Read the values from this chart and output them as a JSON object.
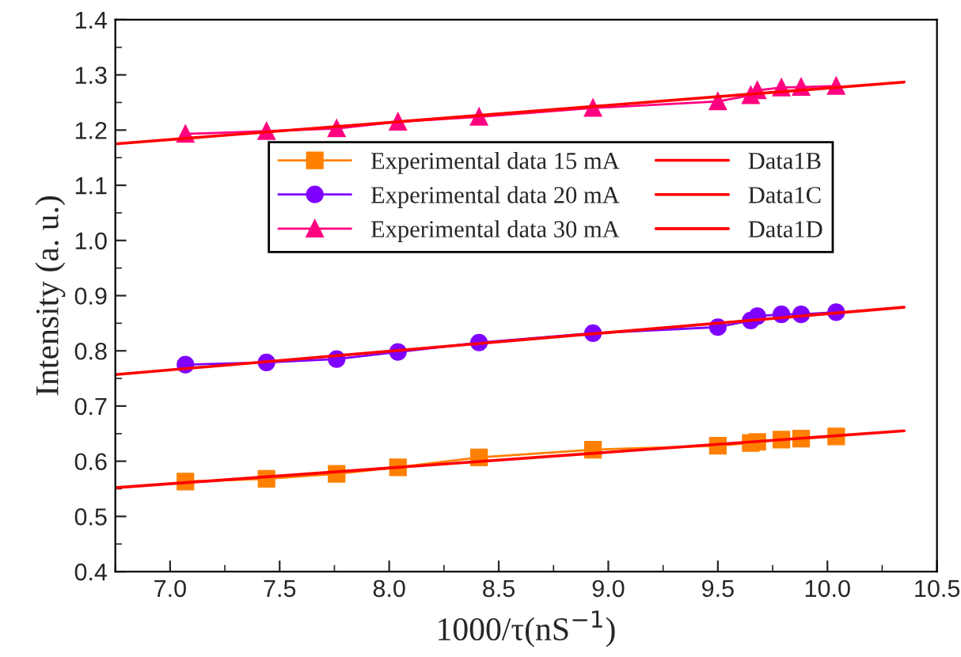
{
  "chart_data": {
    "type": "line",
    "xlabel": "1000/τ(nS$^{−1}$)",
    "ylabel": "Intensity (a. u.)",
    "xlim": [
      6.75,
      10.5
    ],
    "xticks": [
      {
        "value": 7.0,
        "label": "7.0"
      },
      {
        "value": 7.5,
        "label": "7.5"
      },
      {
        "value": 8.0,
        "label": "8.0"
      },
      {
        "value": 8.5,
        "label": "8.5"
      },
      {
        "value": 9.0,
        "label": "9.0"
      },
      {
        "value": 9.5,
        "label": "9.5"
      },
      {
        "value": 10.0,
        "label": "10.0"
      },
      {
        "value": 10.5,
        "label": "10.5"
      }
    ],
    "ylim": [
      0.4,
      1.4
    ],
    "yticks": [
      {
        "value": 0.4,
        "label": "0.4"
      },
      {
        "value": 0.5,
        "label": "0.5"
      },
      {
        "value": 0.6,
        "label": "0.6"
      },
      {
        "value": 0.7,
        "label": "0.7"
      },
      {
        "value": 0.8,
        "label": "0.8"
      },
      {
        "value": 0.9,
        "label": "0.9"
      },
      {
        "value": 1.0,
        "label": "1.0"
      },
      {
        "value": 1.1,
        "label": "1.1"
      },
      {
        "value": 1.2,
        "label": "1.2"
      },
      {
        "value": 1.3,
        "label": "1.3"
      },
      {
        "value": 1.4,
        "label": "1.4"
      }
    ],
    "grid": false,
    "legend": "top",
    "series": [
      {
        "name": "Experimental data 15 mA",
        "color": "#ff8000",
        "marker": "square",
        "x": [
          7.07,
          7.44,
          7.76,
          8.04,
          8.41,
          8.93,
          9.5,
          9.65,
          9.68,
          9.79,
          9.88,
          10.04
        ],
        "values": [
          0.563,
          0.568,
          0.577,
          0.589,
          0.607,
          0.621,
          0.628,
          0.633,
          0.635,
          0.639,
          0.641,
          0.645
        ]
      },
      {
        "name": "Experimental data 20 mA",
        "color": "#8000ff",
        "marker": "circle",
        "x": [
          7.07,
          7.44,
          7.76,
          8.04,
          8.41,
          8.93,
          9.5,
          9.65,
          9.68,
          9.79,
          9.88,
          10.04
        ],
        "values": [
          0.775,
          0.779,
          0.785,
          0.798,
          0.815,
          0.832,
          0.843,
          0.855,
          0.863,
          0.866,
          0.866,
          0.87
        ]
      },
      {
        "name": "Experimental data 30 mA",
        "color": "#ff0080",
        "marker": "triangle",
        "x": [
          7.07,
          7.44,
          7.76,
          8.04,
          8.41,
          8.93,
          9.5,
          9.65,
          9.68,
          9.79,
          9.88,
          10.04
        ],
        "values": [
          1.193,
          1.198,
          1.203,
          1.215,
          1.224,
          1.24,
          1.252,
          1.263,
          1.272,
          1.277,
          1.278,
          1.28
        ]
      },
      {
        "name": "Data1B",
        "color": "#ff0000",
        "marker": "none",
        "x": [
          6.75,
          10.35
        ],
        "values": [
          0.552,
          0.655
        ]
      },
      {
        "name": "Data1C",
        "color": "#ff0000",
        "marker": "none",
        "x": [
          6.75,
          10.35
        ],
        "values": [
          0.757,
          0.879
        ]
      },
      {
        "name": "Data1D",
        "color": "#ff0000",
        "marker": "none",
        "x": [
          6.75,
          10.35
        ],
        "values": [
          1.175,
          1.287
        ]
      }
    ]
  }
}
